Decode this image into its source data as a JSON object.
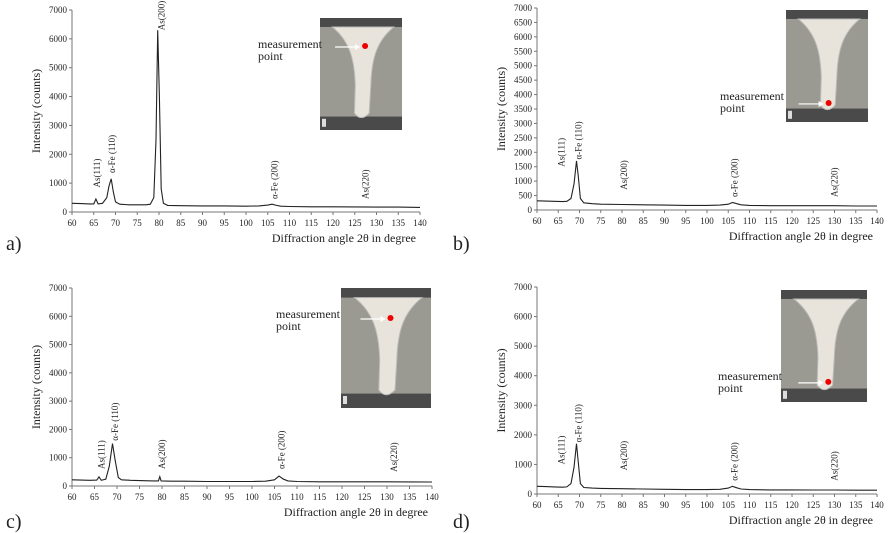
{
  "chart_data": [
    {
      "type": "line",
      "panel_label": "a)",
      "y_label": "Intensity (counts)",
      "x_label": "Diffraction angle 2θ in degree",
      "annotations": [
        "As(111)",
        "α-Fe (110)",
        "As(200)",
        "α-Fe (200)",
        "As(220)"
      ],
      "inset_label": [
        "measurement",
        "point"
      ],
      "xlim": [
        60,
        140
      ],
      "ylim": [
        0,
        7000
      ],
      "xticks": [
        60,
        65,
        70,
        75,
        80,
        85,
        90,
        95,
        100,
        105,
        110,
        115,
        120,
        125,
        130,
        135,
        140
      ],
      "yticks": [
        0,
        1000,
        2000,
        3000,
        4000,
        5000,
        6000,
        7000
      ],
      "x": [
        60,
        62,
        64,
        65,
        65.5,
        66,
        67,
        68,
        68.5,
        69,
        69.5,
        70,
        71,
        73,
        75,
        77,
        78,
        78.8,
        79.3,
        79.7,
        80.1,
        80.5,
        81,
        82,
        85,
        90,
        95,
        100,
        103,
        105,
        106,
        107,
        108,
        110,
        115,
        120,
        125,
        130,
        135,
        140
      ],
      "series": [
        {
          "color": "#222222",
          "values": [
            300,
            290,
            280,
            280,
            450,
            280,
            300,
            500,
            900,
            1150,
            700,
            350,
            270,
            250,
            250,
            250,
            270,
            500,
            2500,
            6300,
            4000,
            800,
            300,
            230,
            220,
            210,
            210,
            200,
            210,
            240,
            270,
            230,
            200,
            190,
            180,
            180,
            175,
            170,
            170,
            160
          ]
        }
      ]
    },
    {
      "type": "line",
      "panel_label": "b)",
      "y_label": "Intensity (counts)",
      "x_label": "Diffraction angle 2θ in degree",
      "annotations": [
        "As(111)",
        "α-Fe (110)",
        "As(200)",
        "α-Fe (200)",
        "As(220)"
      ],
      "inset_label": [
        "measurement",
        "point"
      ],
      "xlim": [
        60,
        140
      ],
      "ylim": [
        0,
        7000
      ],
      "xticks": [
        60,
        65,
        70,
        75,
        80,
        85,
        90,
        95,
        100,
        105,
        110,
        115,
        120,
        125,
        130,
        135,
        140
      ],
      "yticks": [
        0,
        500,
        1000,
        1500,
        2000,
        2500,
        3000,
        3500,
        4000,
        4500,
        5000,
        5500,
        6000,
        6500,
        7000
      ],
      "x": [
        60,
        62,
        64,
        66,
        67,
        68,
        68.7,
        69.3,
        69.7,
        70.2,
        71,
        73,
        75,
        80,
        85,
        90,
        95,
        100,
        103,
        105,
        106,
        107,
        108,
        110,
        115,
        120,
        125,
        130,
        135,
        140
      ],
      "series": [
        {
          "color": "#222222",
          "values": [
            320,
            310,
            300,
            290,
            300,
            400,
            900,
            1700,
            1200,
            400,
            250,
            220,
            200,
            190,
            180,
            170,
            160,
            160,
            170,
            200,
            260,
            220,
            180,
            160,
            150,
            150,
            150,
            150,
            140,
            140
          ]
        }
      ]
    },
    {
      "type": "line",
      "panel_label": "c)",
      "y_label": "Intensity (counts)",
      "x_label": "Diffraction angle 2θ in degree",
      "annotations": [
        "As(111)",
        "α-Fe (110)",
        "As(200)",
        "α-Fe (200)",
        "As(220)"
      ],
      "inset_label": [
        "measurement",
        "point"
      ],
      "xlim": [
        60,
        140
      ],
      "ylim": [
        0,
        7000
      ],
      "xticks": [
        60,
        65,
        70,
        75,
        80,
        85,
        90,
        95,
        100,
        105,
        110,
        115,
        120,
        125,
        130,
        135,
        140
      ],
      "yticks": [
        0,
        1000,
        2000,
        3000,
        4000,
        5000,
        6000,
        7000
      ],
      "x": [
        60,
        62,
        64,
        65.5,
        66,
        66.5,
        67.5,
        68.3,
        69,
        69.6,
        70.3,
        71,
        73,
        75,
        78,
        79.2,
        79.5,
        79.8,
        82,
        85,
        90,
        95,
        100,
        103,
        105,
        106,
        107,
        108,
        110,
        115,
        120,
        125,
        130,
        135,
        140
      ],
      "series": [
        {
          "color": "#222222",
          "values": [
            220,
            210,
            200,
            210,
            320,
            200,
            240,
            700,
            1500,
            900,
            300,
            220,
            200,
            190,
            180,
            180,
            330,
            180,
            170,
            170,
            160,
            160,
            160,
            170,
            220,
            350,
            240,
            180,
            160,
            150,
            150,
            150,
            150,
            145,
            140
          ]
        }
      ]
    },
    {
      "type": "line",
      "panel_label": "d)",
      "y_label": "Intensity (counts)",
      "x_label": "Diffraction angle 2θ in degree",
      "annotations": [
        "As(111)",
        "α-Fe (110)",
        "As(200)",
        "α-Fe (200)",
        "As(220)"
      ],
      "inset_label": [
        "measurement",
        "point"
      ],
      "xlim": [
        60,
        140
      ],
      "ylim": [
        0,
        7000
      ],
      "xticks": [
        60,
        65,
        70,
        75,
        80,
        85,
        90,
        95,
        100,
        105,
        110,
        115,
        120,
        125,
        130,
        135,
        140
      ],
      "yticks": [
        0,
        1000,
        2000,
        3000,
        4000,
        5000,
        6000,
        7000
      ],
      "x": [
        60,
        62,
        64,
        66,
        67,
        68,
        68.7,
        69.3,
        69.7,
        70.2,
        71,
        73,
        75,
        80,
        85,
        90,
        95,
        100,
        103,
        105,
        106,
        107,
        108,
        110,
        115,
        120,
        125,
        130,
        135,
        140
      ],
      "series": [
        {
          "color": "#222222",
          "values": [
            260,
            250,
            240,
            230,
            240,
            350,
            900,
            1700,
            1100,
            350,
            220,
            200,
            190,
            180,
            170,
            160,
            150,
            150,
            160,
            200,
            260,
            210,
            170,
            150,
            140,
            140,
            135,
            135,
            130,
            130
          ]
        }
      ]
    }
  ]
}
